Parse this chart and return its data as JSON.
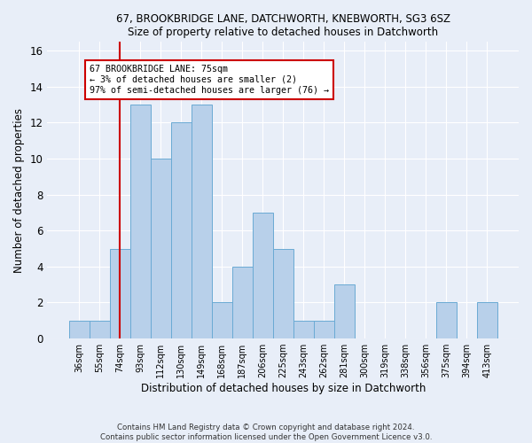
{
  "title1": "67, BROOKBRIDGE LANE, DATCHWORTH, KNEBWORTH, SG3 6SZ",
  "title2": "Size of property relative to detached houses in Datchworth",
  "xlabel": "Distribution of detached houses by size in Datchworth",
  "ylabel": "Number of detached properties",
  "categories": [
    "36sqm",
    "55sqm",
    "74sqm",
    "93sqm",
    "112sqm",
    "130sqm",
    "149sqm",
    "168sqm",
    "187sqm",
    "206sqm",
    "225sqm",
    "243sqm",
    "262sqm",
    "281sqm",
    "300sqm",
    "319sqm",
    "338sqm",
    "356sqm",
    "375sqm",
    "394sqm",
    "413sqm"
  ],
  "values": [
    1,
    1,
    5,
    13,
    10,
    12,
    13,
    2,
    4,
    7,
    5,
    1,
    1,
    3,
    0,
    0,
    0,
    0,
    2,
    0,
    2
  ],
  "bar_color": "#b8d0ea",
  "bar_edge_color": "#6aaad4",
  "highlight_bar_index": 2,
  "highlight_line_color": "#cc0000",
  "annotation_box_color": "#cc0000",
  "annotation_line1": "67 BROOKBRIDGE LANE: 75sqm",
  "annotation_line2": "← 3% of detached houses are smaller (2)",
  "annotation_line3": "97% of semi-detached houses are larger (76) →",
  "ylim": [
    0,
    16
  ],
  "yticks": [
    0,
    2,
    4,
    6,
    8,
    10,
    12,
    14,
    16
  ],
  "footer1": "Contains HM Land Registry data © Crown copyright and database right 2024.",
  "footer2": "Contains public sector information licensed under the Open Government Licence v3.0.",
  "bg_color": "#e8eef8",
  "plot_bg_color": "#e8eef8"
}
